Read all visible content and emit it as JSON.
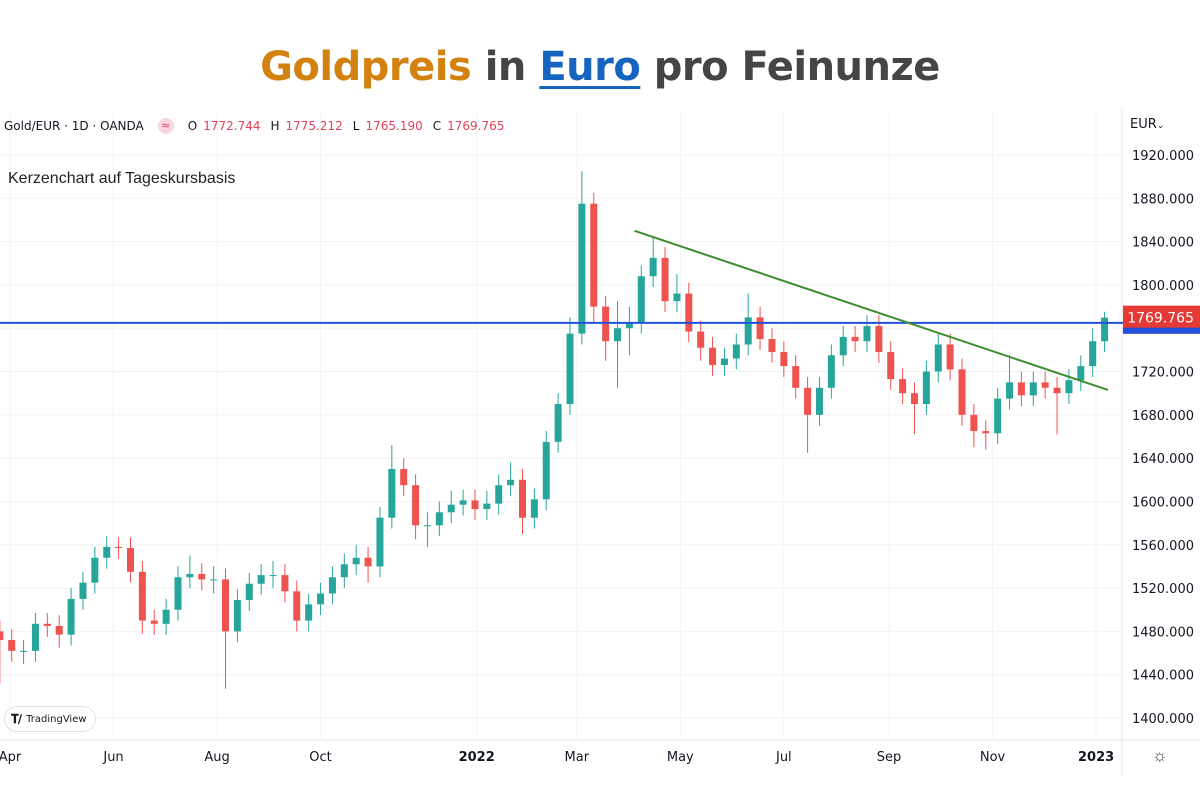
{
  "title": {
    "part1": "Goldpreis",
    "part2": "in",
    "part3": "Euro",
    "part4": "pro Feinunze"
  },
  "legend": {
    "symbol": "Gold/EUR · 1D · OANDA",
    "badge_icon": "≈",
    "open_label": "O",
    "open": "1772.744",
    "high_label": "H",
    "high": "1775.212",
    "low_label": "L",
    "low": "1765.190",
    "close_label": "C",
    "close": "1769.765"
  },
  "subtitle": "Kerzenchart auf Tageskursbasis",
  "currency": "EUR",
  "currency_icon": "chevron-down-icon",
  "brand": {
    "mark": "TV",
    "name": "TradingView"
  },
  "settings_icon": "gear-icon",
  "colors": {
    "up": "#26a69a",
    "down": "#ef5350",
    "trendline": "#3e8e2f",
    "horizontal_line": "#2350d8",
    "last_price_bg": "#e53935",
    "title_gold": "#d4820f",
    "title_euro": "#1565c0"
  },
  "chart_data": {
    "type": "candlestick",
    "title": "Goldpreis in Euro pro Feinunze",
    "ylabel": "EUR",
    "ylim": [
      1380,
      1960
    ],
    "y_ticks": [
      "1400.000",
      "1440.000",
      "1480.000",
      "1520.000",
      "1560.000",
      "1600.000",
      "1640.000",
      "1680.000",
      "1720.000",
      "1760.000",
      "1800.000",
      "1840.000",
      "1880.000",
      "1920.000"
    ],
    "x_ticks": [
      {
        "label": "Apr",
        "date": "2021-04-01"
      },
      {
        "label": "Jun",
        "date": "2021-06-01"
      },
      {
        "label": "Aug",
        "date": "2021-08-01"
      },
      {
        "label": "Oct",
        "date": "2021-10-01"
      },
      {
        "label": "2022",
        "date": "2022-01-01"
      },
      {
        "label": "Mar",
        "date": "2022-03-01"
      },
      {
        "label": "May",
        "date": "2022-05-01"
      },
      {
        "label": "Jul",
        "date": "2022-07-01"
      },
      {
        "label": "Sep",
        "date": "2022-09-01"
      },
      {
        "label": "Nov",
        "date": "2022-11-01"
      },
      {
        "label": "2023",
        "date": "2023-01-01"
      }
    ],
    "grid": true,
    "candle_interval_days": 7,
    "first_candle_date": "2021-03-26",
    "open": [
      1480,
      1472,
      1462,
      1462,
      1487,
      1485,
      1477,
      1510,
      1525,
      1548,
      1558,
      1557,
      1535,
      1490,
      1487,
      1500,
      1530,
      1533,
      1528,
      1528,
      1480,
      1509,
      1524,
      1532,
      1532,
      1517,
      1490,
      1505,
      1515,
      1530,
      1542,
      1548,
      1540,
      1585,
      1630,
      1615,
      1578,
      1578,
      1590,
      1597,
      1601,
      1593,
      1598,
      1615,
      1620,
      1585,
      1602,
      1655,
      1690,
      1755,
      1875,
      1780,
      1748,
      1760,
      1765,
      1808,
      1825,
      1785,
      1792,
      1757,
      1742,
      1726,
      1732,
      1745,
      1770,
      1750,
      1738,
      1725,
      1705,
      1680,
      1705,
      1735,
      1752,
      1748,
      1762,
      1738,
      1713,
      1700,
      1690,
      1720,
      1745,
      1722,
      1680,
      1665,
      1663,
      1695,
      1710,
      1698,
      1710,
      1705,
      1700,
      1712,
      1725,
      1748
    ],
    "high": [
      1490,
      1482,
      1472,
      1497,
      1497,
      1495,
      1520,
      1535,
      1558,
      1568,
      1567,
      1567,
      1545,
      1500,
      1510,
      1540,
      1550,
      1543,
      1540,
      1538,
      1519,
      1534,
      1542,
      1545,
      1542,
      1527,
      1515,
      1525,
      1540,
      1552,
      1560,
      1558,
      1595,
      1652,
      1640,
      1625,
      1590,
      1600,
      1610,
      1611,
      1611,
      1610,
      1625,
      1636,
      1630,
      1612,
      1665,
      1700,
      1770,
      1905,
      1885,
      1790,
      1785,
      1780,
      1818,
      1845,
      1835,
      1810,
      1802,
      1767,
      1752,
      1742,
      1755,
      1792,
      1780,
      1760,
      1748,
      1735,
      1715,
      1715,
      1745,
      1762,
      1762,
      1772,
      1772,
      1748,
      1723,
      1710,
      1730,
      1755,
      1755,
      1732,
      1690,
      1675,
      1705,
      1735,
      1720,
      1720,
      1720,
      1715,
      1722,
      1735,
      1760,
      1775.212
    ],
    "low": [
      1432,
      1452,
      1450,
      1452,
      1475,
      1465,
      1467,
      1500,
      1515,
      1538,
      1547,
      1525,
      1478,
      1477,
      1477,
      1490,
      1520,
      1518,
      1515,
      1427,
      1470,
      1499,
      1514,
      1520,
      1507,
      1480,
      1480,
      1495,
      1505,
      1520,
      1532,
      1525,
      1530,
      1575,
      1605,
      1565,
      1558,
      1568,
      1580,
      1587,
      1583,
      1583,
      1588,
      1605,
      1570,
      1575,
      1592,
      1645,
      1680,
      1745,
      1765,
      1730,
      1705,
      1735,
      1755,
      1798,
      1775,
      1775,
      1747,
      1730,
      1716,
      1716,
      1722,
      1735,
      1740,
      1728,
      1715,
      1695,
      1645,
      1670,
      1695,
      1725,
      1738,
      1738,
      1728,
      1703,
      1690,
      1662,
      1680,
      1710,
      1712,
      1670,
      1650,
      1648,
      1653,
      1685,
      1688,
      1688,
      1695,
      1662,
      1690,
      1702,
      1715,
      1738
    ],
    "close": [
      1472,
      1462,
      1462,
      1487,
      1485,
      1477,
      1510,
      1525,
      1548,
      1558,
      1557,
      1535,
      1490,
      1487,
      1500,
      1530,
      1533,
      1528,
      1528,
      1480,
      1509,
      1524,
      1532,
      1532,
      1517,
      1490,
      1505,
      1515,
      1530,
      1542,
      1548,
      1540,
      1585,
      1630,
      1615,
      1578,
      1578,
      1590,
      1597,
      1601,
      1593,
      1598,
      1615,
      1620,
      1585,
      1602,
      1655,
      1690,
      1755,
      1875,
      1780,
      1748,
      1760,
      1765,
      1808,
      1825,
      1785,
      1792,
      1757,
      1742,
      1726,
      1732,
      1745,
      1770,
      1750,
      1738,
      1725,
      1705,
      1680,
      1705,
      1735,
      1752,
      1748,
      1762,
      1738,
      1713,
      1700,
      1690,
      1720,
      1745,
      1722,
      1680,
      1665,
      1663,
      1695,
      1710,
      1698,
      1710,
      1705,
      1700,
      1712,
      1725,
      1748,
      1769.765
    ],
    "last_price": "1769.765",
    "horizontal_line": 1765,
    "trendline": {
      "start": {
        "date": "2022-04-04",
        "value": 1850
      },
      "end": {
        "date": "2023-01-08",
        "value": 1703
      }
    }
  }
}
